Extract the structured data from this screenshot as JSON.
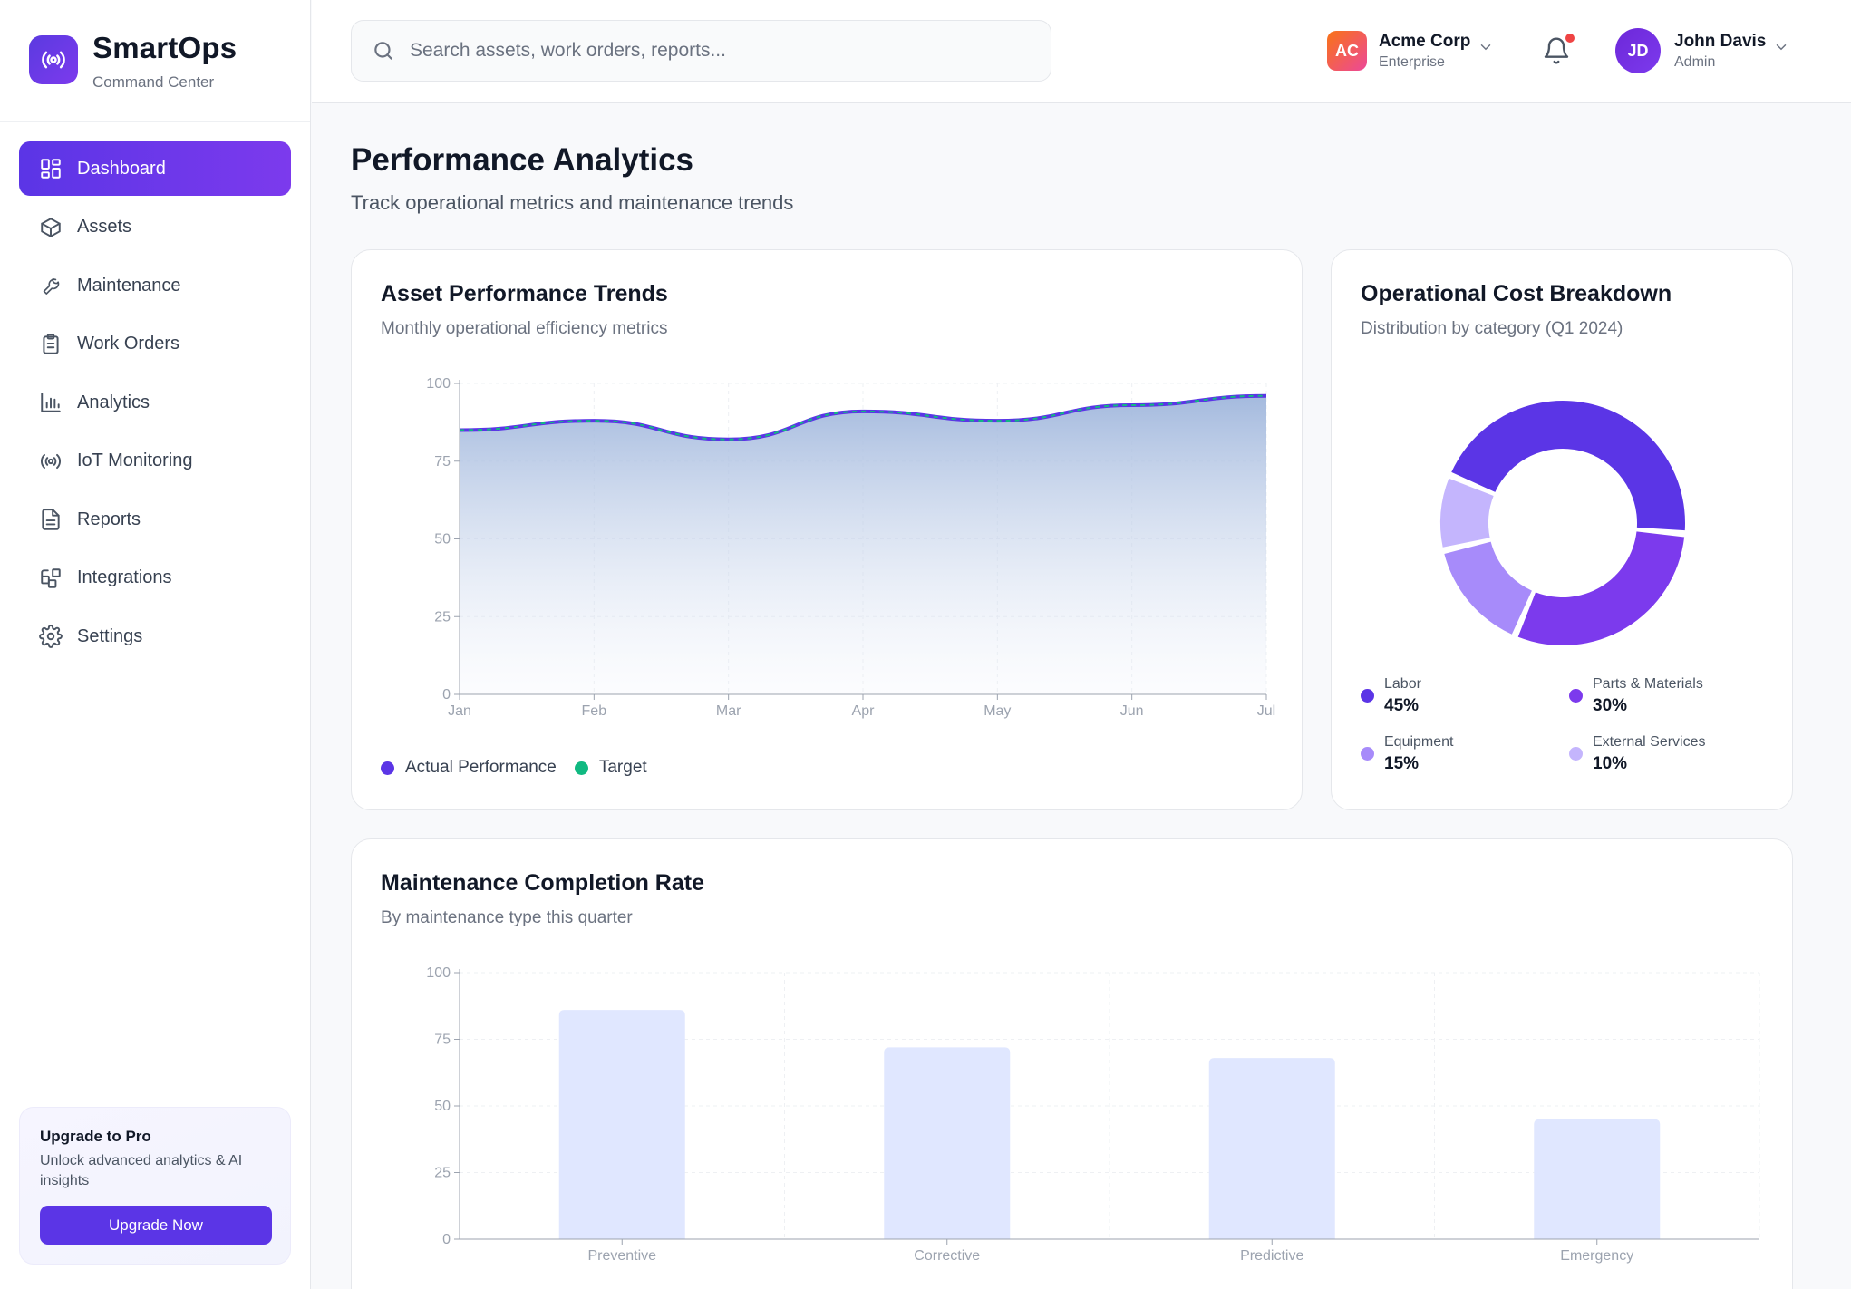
{
  "brand": {
    "title": "SmartOps",
    "subtitle": "Command Center"
  },
  "sidebar": {
    "items": [
      {
        "label": "Dashboard",
        "icon": "dashboard-icon",
        "active": true
      },
      {
        "label": "Assets",
        "icon": "box-icon"
      },
      {
        "label": "Maintenance",
        "icon": "wrench-icon"
      },
      {
        "label": "Work Orders",
        "icon": "clipboard-icon"
      },
      {
        "label": "Analytics",
        "icon": "bar-chart-icon"
      },
      {
        "label": "IoT Monitoring",
        "icon": "broadcast-icon"
      },
      {
        "label": "Reports",
        "icon": "document-icon"
      },
      {
        "label": "Integrations",
        "icon": "puzzle-icon"
      },
      {
        "label": "Settings",
        "icon": "gear-icon"
      }
    ],
    "upgrade": {
      "title": "Upgrade to Pro",
      "description": "Unlock advanced analytics & AI insights",
      "button": "Upgrade Now"
    }
  },
  "header": {
    "search_placeholder": "Search assets, work orders, reports...",
    "org": {
      "initials": "AC",
      "name": "Acme Corp",
      "plan": "Enterprise"
    },
    "user": {
      "initials": "JD",
      "name": "John Davis",
      "role": "Admin"
    },
    "notifications_unread": true
  },
  "page": {
    "title": "Performance Analytics",
    "subtitle": "Track operational metrics and maintenance trends"
  },
  "colors": {
    "accent": "#5b35e6",
    "purple": "#7c3aed",
    "target": "#10b981",
    "labor": "#5b35e6",
    "parts": "#7c3aed",
    "equipment": "#a78bfa",
    "external": "#c4b5fd",
    "bar": "#e0e7ff"
  },
  "cards": {
    "trend": {
      "title": "Asset Performance Trends",
      "subtitle": "Monthly operational efficiency metrics"
    },
    "cost": {
      "title": "Operational Cost Breakdown",
      "subtitle": "Distribution by category (Q1 2024)"
    },
    "maintenance": {
      "title": "Maintenance Completion Rate",
      "subtitle": "By maintenance type this quarter"
    }
  },
  "chart_data": [
    {
      "type": "area",
      "categories": [
        "Jan",
        "Feb",
        "Mar",
        "Apr",
        "May",
        "Jun",
        "Jul"
      ],
      "series": [
        {
          "name": "Actual Performance",
          "values": [
            85,
            88,
            82,
            91,
            88,
            93,
            96
          ]
        },
        {
          "name": "Target",
          "values": [
            85,
            88,
            82,
            91,
            88,
            93,
            96
          ]
        }
      ],
      "ylim": [
        0,
        100
      ],
      "yticks": [
        0,
        25,
        50,
        75,
        100
      ],
      "grid": true,
      "legend": "bottom-left"
    },
    {
      "type": "pie",
      "donut": true,
      "slices": [
        {
          "label": "Labor",
          "value": 45,
          "display": "45%"
        },
        {
          "label": "Parts & Materials",
          "value": 30,
          "display": "30%"
        },
        {
          "label": "Equipment",
          "value": 15,
          "display": "15%"
        },
        {
          "label": "External Services",
          "value": 10,
          "display": "10%"
        }
      ],
      "legend": "bottom"
    },
    {
      "type": "bar",
      "categories": [
        "Preventive",
        "Corrective",
        "Predictive",
        "Emergency"
      ],
      "values": [
        86,
        72,
        68,
        45
      ],
      "ylim": [
        0,
        100
      ],
      "yticks": [
        0,
        25,
        50,
        75,
        100
      ],
      "grid": true
    }
  ]
}
